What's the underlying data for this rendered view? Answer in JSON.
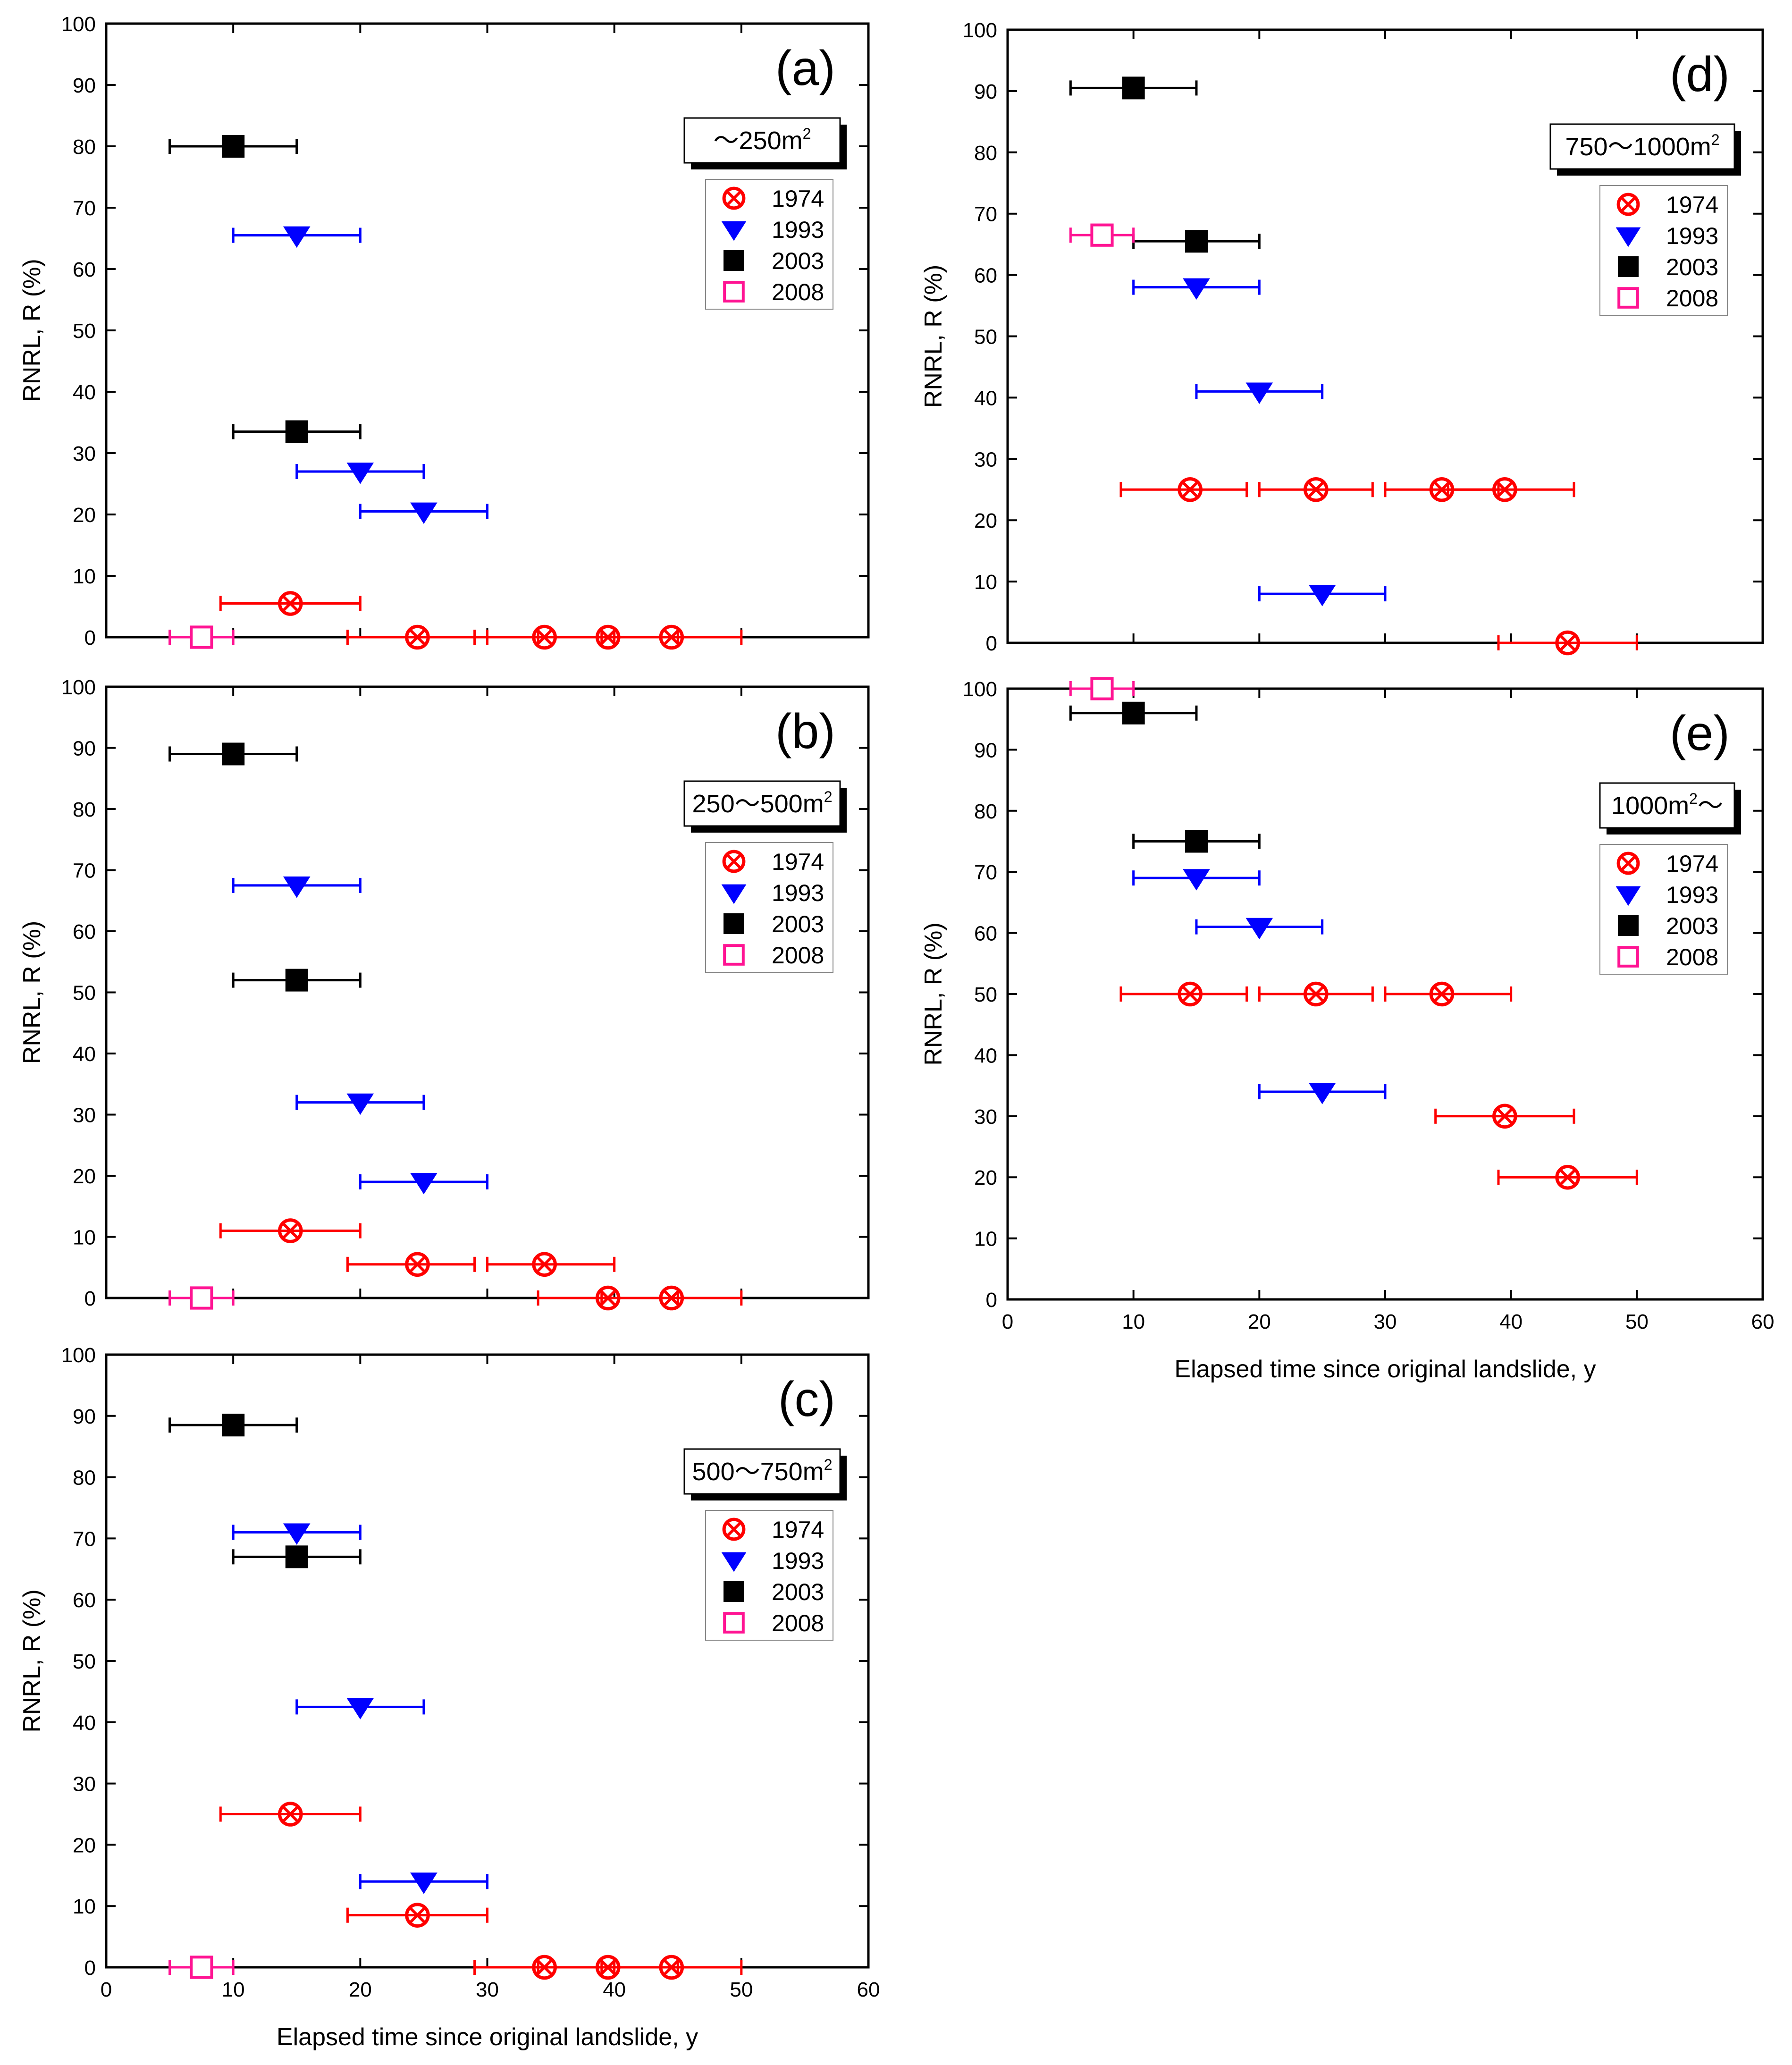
{
  "figure": {
    "x_axis_title": "Elapsed time since original landslide, y",
    "y_axis_title": "RNRL, R (%)"
  },
  "chart_data": [
    {
      "type": "scatter",
      "panel": "(a)",
      "size_class": {
        "prefix": "～250m",
        "sup": "2",
        "suffix": ""
      },
      "xlim": [
        0,
        60
      ],
      "ylim": [
        0,
        100
      ],
      "x_ticks": [
        "0",
        "10",
        "20",
        "30",
        "40",
        "50",
        "60"
      ],
      "y_ticks": [
        "0",
        "10",
        "20",
        "30",
        "40",
        "50",
        "60",
        "70",
        "80",
        "90",
        "100"
      ],
      "legend": [
        "1974",
        "1993",
        "2003",
        "2008"
      ],
      "series": [
        {
          "name": "1974",
          "marker": "circle-x",
          "color": "#ff0000",
          "points": [
            {
              "x": 14.5,
              "y": 5.5,
              "xerr": [
                9,
                20
              ]
            },
            {
              "x": 24.5,
              "y": 0,
              "xerr": [
                19,
                30
              ]
            },
            {
              "x": 34.5,
              "y": 0,
              "xerr": [
                29,
                40
              ]
            },
            {
              "x": 39.5,
              "y": 0,
              "xerr": [
                34,
                45
              ]
            },
            {
              "x": 44.5,
              "y": 0,
              "xerr": [
                39,
                50
              ]
            }
          ]
        },
        {
          "name": "1993",
          "marker": "triangle-down",
          "color": "#0000ff",
          "points": [
            {
              "x": 15,
              "y": 65.5,
              "xerr": [
                10,
                20
              ]
            },
            {
              "x": 20,
              "y": 27,
              "xerr": [
                15,
                25
              ]
            },
            {
              "x": 25,
              "y": 20.5,
              "xerr": [
                20,
                30
              ]
            }
          ]
        },
        {
          "name": "2003",
          "marker": "square",
          "color": "#000000",
          "points": [
            {
              "x": 10,
              "y": 80,
              "xerr": [
                5,
                15
              ]
            },
            {
              "x": 15,
              "y": 33.5,
              "xerr": [
                10,
                20
              ]
            }
          ]
        },
        {
          "name": "2008",
          "marker": "square-open",
          "color": "#ff1493",
          "points": [
            {
              "x": 7.5,
              "y": 0,
              "xerr": [
                5,
                10
              ]
            }
          ]
        }
      ]
    },
    {
      "type": "scatter",
      "panel": "(b)",
      "size_class": {
        "prefix": "250～500m",
        "sup": "2",
        "suffix": ""
      },
      "xlim": [
        0,
        60
      ],
      "ylim": [
        0,
        100
      ],
      "x_ticks": [
        "0",
        "10",
        "20",
        "30",
        "40",
        "50",
        "60"
      ],
      "y_ticks": [
        "0",
        "10",
        "20",
        "30",
        "40",
        "50",
        "60",
        "70",
        "80",
        "90",
        "100"
      ],
      "legend": [
        "1974",
        "1993",
        "2003",
        "2008"
      ],
      "series": [
        {
          "name": "1974",
          "marker": "circle-x",
          "color": "#ff0000",
          "points": [
            {
              "x": 14.5,
              "y": 11,
              "xerr": [
                9,
                20
              ]
            },
            {
              "x": 24.5,
              "y": 5.5,
              "xerr": [
                19,
                29
              ]
            },
            {
              "x": 34.5,
              "y": 5.5,
              "xerr": [
                30,
                40
              ]
            },
            {
              "x": 39.5,
              "y": 0,
              "xerr": [
                34,
                45
              ]
            },
            {
              "x": 44.5,
              "y": 0,
              "xerr": [
                39,
                50
              ]
            }
          ]
        },
        {
          "name": "1993",
          "marker": "triangle-down",
          "color": "#0000ff",
          "points": [
            {
              "x": 15,
              "y": 67.5,
              "xerr": [
                10,
                20
              ]
            },
            {
              "x": 20,
              "y": 32,
              "xerr": [
                15,
                25
              ]
            },
            {
              "x": 25,
              "y": 19,
              "xerr": [
                20,
                30
              ]
            }
          ]
        },
        {
          "name": "2003",
          "marker": "square",
          "color": "#000000",
          "points": [
            {
              "x": 10,
              "y": 89,
              "xerr": [
                5,
                15
              ]
            },
            {
              "x": 15,
              "y": 52,
              "xerr": [
                10,
                20
              ]
            }
          ]
        },
        {
          "name": "2008",
          "marker": "square-open",
          "color": "#ff1493",
          "points": [
            {
              "x": 7.5,
              "y": 0,
              "xerr": [
                5,
                10
              ]
            }
          ]
        }
      ]
    },
    {
      "type": "scatter",
      "panel": "(c)",
      "size_class": {
        "prefix": "500～750m",
        "sup": "2",
        "suffix": ""
      },
      "xlim": [
        0,
        60
      ],
      "ylim": [
        0,
        100
      ],
      "x_ticks": [
        "0",
        "10",
        "20",
        "30",
        "40",
        "50",
        "60"
      ],
      "y_ticks": [
        "0",
        "10",
        "20",
        "30",
        "40",
        "50",
        "60",
        "70",
        "80",
        "90",
        "100"
      ],
      "legend": [
        "1974",
        "1993",
        "2003",
        "2008"
      ],
      "series": [
        {
          "name": "1974",
          "marker": "circle-x",
          "color": "#ff0000",
          "points": [
            {
              "x": 14.5,
              "y": 25,
              "xerr": [
                9,
                20
              ]
            },
            {
              "x": 24.5,
              "y": 8.5,
              "xerr": [
                19,
                30
              ]
            },
            {
              "x": 34.5,
              "y": 0,
              "xerr": [
                29,
                40
              ]
            },
            {
              "x": 39.5,
              "y": 0,
              "xerr": [
                34,
                45
              ]
            },
            {
              "x": 44.5,
              "y": 0,
              "xerr": [
                39,
                50
              ]
            }
          ]
        },
        {
          "name": "1993",
          "marker": "triangle-down",
          "color": "#0000ff",
          "points": [
            {
              "x": 15,
              "y": 71,
              "xerr": [
                10,
                20
              ]
            },
            {
              "x": 20,
              "y": 42.5,
              "xerr": [
                15,
                25
              ]
            },
            {
              "x": 25,
              "y": 14,
              "xerr": [
                20,
                30
              ]
            }
          ]
        },
        {
          "name": "2003",
          "marker": "square",
          "color": "#000000",
          "points": [
            {
              "x": 10,
              "y": 88.5,
              "xerr": [
                5,
                15
              ]
            },
            {
              "x": 15,
              "y": 67,
              "xerr": [
                10,
                20
              ]
            }
          ]
        },
        {
          "name": "2008",
          "marker": "square-open",
          "color": "#ff1493",
          "points": [
            {
              "x": 7.5,
              "y": 0,
              "xerr": [
                5,
                10
              ]
            }
          ]
        }
      ]
    },
    {
      "type": "scatter",
      "panel": "(d)",
      "size_class": {
        "prefix": "750～1000m",
        "sup": "2",
        "suffix": ""
      },
      "xlim": [
        0,
        60
      ],
      "ylim": [
        0,
        100
      ],
      "x_ticks": [
        "0",
        "10",
        "20",
        "30",
        "40",
        "50",
        "60"
      ],
      "y_ticks": [
        "0",
        "10",
        "20",
        "30",
        "40",
        "50",
        "60",
        "70",
        "80",
        "90",
        "100"
      ],
      "legend": [
        "1974",
        "1993",
        "2003",
        "2008"
      ],
      "series": [
        {
          "name": "1974",
          "marker": "circle-x",
          "color": "#ff0000",
          "points": [
            {
              "x": 14.5,
              "y": 25,
              "xerr": [
                9,
                19
              ]
            },
            {
              "x": 24.5,
              "y": 25,
              "xerr": [
                20,
                29
              ]
            },
            {
              "x": 34.5,
              "y": 25,
              "xerr": [
                30,
                39
              ]
            },
            {
              "x": 39.5,
              "y": 25,
              "xerr": [
                35,
                45
              ]
            },
            {
              "x": 44.5,
              "y": 0,
              "xerr": [
                39,
                50
              ]
            }
          ]
        },
        {
          "name": "1993",
          "marker": "triangle-down",
          "color": "#0000ff",
          "points": [
            {
              "x": 15,
              "y": 58,
              "xerr": [
                10,
                20
              ]
            },
            {
              "x": 20,
              "y": 41,
              "xerr": [
                15,
                25
              ]
            },
            {
              "x": 25,
              "y": 8,
              "xerr": [
                20,
                30
              ]
            }
          ]
        },
        {
          "name": "2003",
          "marker": "square",
          "color": "#000000",
          "points": [
            {
              "x": 10,
              "y": 90.5,
              "xerr": [
                5,
                15
              ]
            },
            {
              "x": 15,
              "y": 65.5,
              "xerr": [
                10,
                20
              ]
            }
          ]
        },
        {
          "name": "2008",
          "marker": "square-open",
          "color": "#ff1493",
          "points": [
            {
              "x": 7.5,
              "y": 66.5,
              "xerr": [
                5,
                10
              ]
            }
          ]
        }
      ]
    },
    {
      "type": "scatter",
      "panel": "(e)",
      "size_class": {
        "prefix": "1000m",
        "sup": "2",
        "suffix": "～"
      },
      "xlim": [
        0,
        60
      ],
      "ylim": [
        0,
        100
      ],
      "x_ticks": [
        "0",
        "10",
        "20",
        "30",
        "40",
        "50",
        "60"
      ],
      "y_ticks": [
        "0",
        "10",
        "20",
        "30",
        "40",
        "50",
        "60",
        "70",
        "80",
        "90",
        "100"
      ],
      "legend": [
        "1974",
        "1993",
        "2003",
        "2008"
      ],
      "series": [
        {
          "name": "1974",
          "marker": "circle-x",
          "color": "#ff0000",
          "points": [
            {
              "x": 14.5,
              "y": 50,
              "xerr": [
                9,
                19
              ]
            },
            {
              "x": 24.5,
              "y": 50,
              "xerr": [
                20,
                29
              ]
            },
            {
              "x": 34.5,
              "y": 50,
              "xerr": [
                30,
                40
              ]
            },
            {
              "x": 39.5,
              "y": 30,
              "xerr": [
                34,
                45
              ]
            },
            {
              "x": 44.5,
              "y": 20,
              "xerr": [
                39,
                50
              ]
            }
          ]
        },
        {
          "name": "1993",
          "marker": "triangle-down",
          "color": "#0000ff",
          "points": [
            {
              "x": 15,
              "y": 69,
              "xerr": [
                10,
                20
              ]
            },
            {
              "x": 20,
              "y": 61,
              "xerr": [
                15,
                25
              ]
            },
            {
              "x": 25,
              "y": 34,
              "xerr": [
                20,
                30
              ]
            }
          ]
        },
        {
          "name": "2003",
          "marker": "square",
          "color": "#000000",
          "points": [
            {
              "x": 10,
              "y": 96,
              "xerr": [
                5,
                15
              ]
            },
            {
              "x": 15,
              "y": 75,
              "xerr": [
                10,
                20
              ]
            }
          ]
        },
        {
          "name": "2008",
          "marker": "square-open",
          "color": "#ff1493",
          "points": [
            {
              "x": 7.5,
              "y": 100,
              "xerr": [
                5,
                10
              ]
            }
          ]
        }
      ]
    }
  ]
}
